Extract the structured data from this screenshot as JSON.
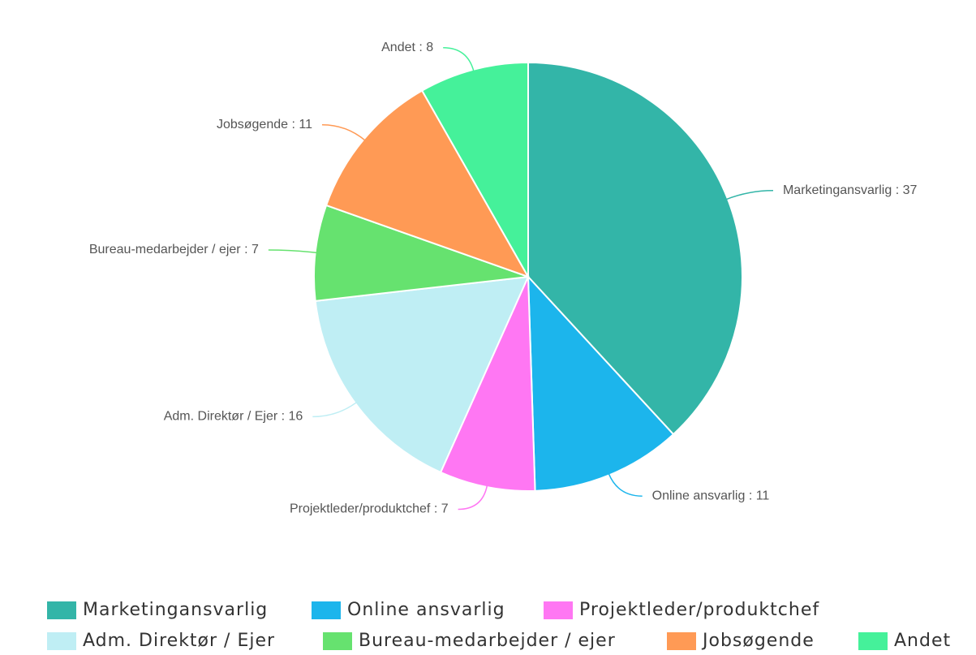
{
  "chart_data": {
    "type": "pie",
    "categories": [
      "Marketingansvarlig",
      "Online ansvarlig",
      "Projektleder/produktchef",
      "Adm. Direktør / Ejer",
      "Bureau-medarbejder / ejer",
      "Jobsøgende",
      "Andet"
    ],
    "values": [
      37,
      11,
      7,
      16,
      7,
      11,
      8
    ],
    "value_labels": [
      "Marketingansvarlig : 37",
      "Online ansvarlig : 11",
      "Projektleder/produktchef : 7",
      "Adm. Direktør / Ejer : 16",
      "Bureau-medarbejder / ejer : 7",
      "Jobsøgende : 11",
      "Andet : 8"
    ],
    "colors": [
      "#33b5a8",
      "#1cb5ec",
      "#ff77f3",
      "#bfeef4",
      "#66e26f",
      "#ff9a55",
      "#45f19a"
    ],
    "legend": "bottom"
  }
}
